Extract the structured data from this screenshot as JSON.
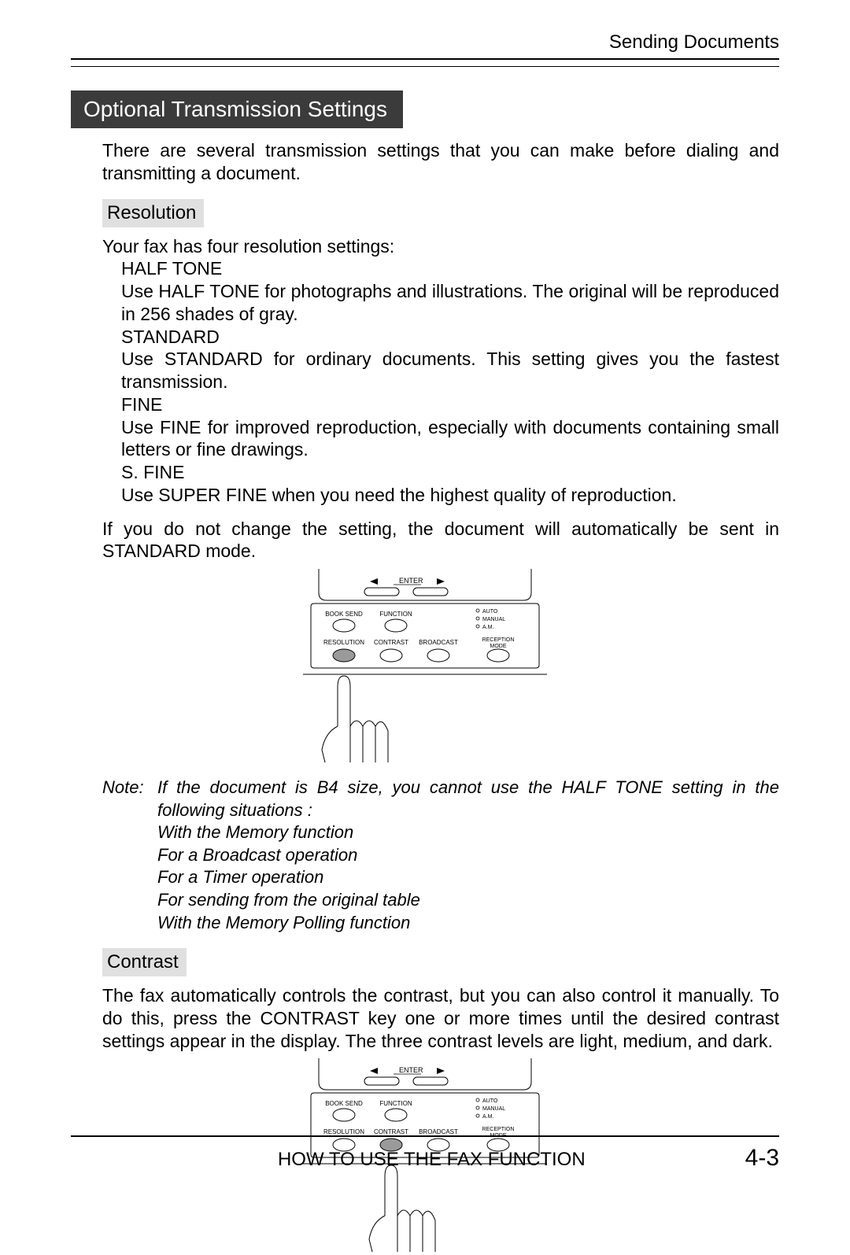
{
  "header": {
    "right": "Sending Documents"
  },
  "section": {
    "heading": "Optional Transmission Settings",
    "intro": "There are several transmission settings that you can make before dialing and transmitting a document."
  },
  "resolution": {
    "heading": "Resolution",
    "intro": "Your fax has four resolution settings:",
    "modes": [
      {
        "name": "HALF TONE",
        "desc": "Use HALF TONE for photographs and illustrations. The original will be reproduced in 256 shades of gray."
      },
      {
        "name": "STANDARD",
        "desc": "Use STANDARD for ordinary documents. This setting gives you the fastest transmission."
      },
      {
        "name": "FINE",
        "desc": "Use FINE for improved reproduction, especially with documents containing small letters or fine drawings."
      },
      {
        "name": "S. FINE",
        "desc": "Use SUPER FINE when you need the highest quality of reproduction."
      }
    ],
    "post": "If you do not change the setting, the document will automatically be sent in STANDARD mode."
  },
  "note": {
    "label": "Note:",
    "line1": "If the document is B4 size, you cannot use the HALF TONE setting in the following situations :",
    "subs": [
      "With the Memory function",
      "For a Broadcast operation",
      "For a Timer operation",
      "For sending from the original table",
      "With the Memory Polling function"
    ]
  },
  "contrast": {
    "heading": "Contrast",
    "body": "The fax automatically controls the contrast, but you can also control it manually. To do this, press the CONTRAST key one or more times until the desired contrast settings appear in the display. The three contrast levels are light, medium, and dark."
  },
  "panel": {
    "enter": "ENTER",
    "row1": [
      "BOOK SEND",
      "FUNCTION"
    ],
    "leds": [
      "AUTO",
      "MANUAL",
      "A.M."
    ],
    "row2": [
      "RESOLUTION",
      "CONTRAST",
      "BROADCAST"
    ],
    "reception": "RECEPTION",
    "mode": "MODE",
    "highlight_a": 0,
    "highlight_b": 1
  },
  "footer": {
    "center": "HOW TO USE THE FAX FUNCTION",
    "page": "4-3"
  },
  "colors": {
    "heading_bg": "#3b3b3b",
    "subheading_bg": "#e0e0e0",
    "highlight_fill": "#9a9a9a"
  }
}
